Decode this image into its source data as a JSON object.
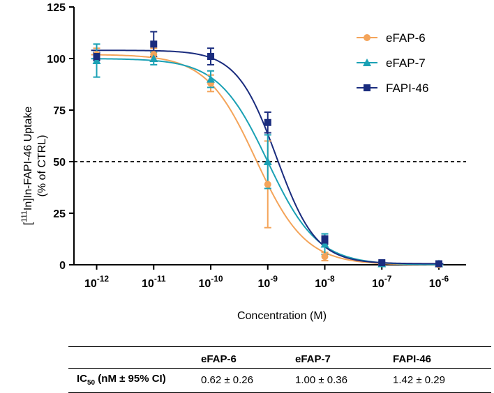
{
  "chart_data": {
    "type": "line",
    "xlabel": "Concentration (M)",
    "ylabel_line1": "[111In]In-FAPI-46 Uptake",
    "ylabel_line1_sup": "111",
    "ylabel_line1_pre": "[",
    "ylabel_line1_post": "In]In-FAPI-46 Uptake",
    "ylabel_line2": "(% of  CTRL)",
    "x_scale": "log",
    "xlim": [
      4e-13,
      3e-06
    ],
    "ylim": [
      0,
      125
    ],
    "yticks": [
      0,
      25,
      50,
      75,
      100,
      125
    ],
    "xticks": [
      {
        "value": 1e-12,
        "base": "10",
        "exp": "-12"
      },
      {
        "value": 1e-11,
        "base": "10",
        "exp": "-11"
      },
      {
        "value": 1e-10,
        "base": "10",
        "exp": "-10"
      },
      {
        "value": 1e-09,
        "base": "10",
        "exp": "-9"
      },
      {
        "value": 1e-08,
        "base": "10",
        "exp": "-8"
      },
      {
        "value": 1e-07,
        "base": "10",
        "exp": "-7"
      },
      {
        "value": 1e-06,
        "base": "10",
        "exp": "-6"
      }
    ],
    "reference_line": {
      "y": 50,
      "style": "dashed"
    },
    "legend_position": "top-right",
    "grid": false,
    "series": [
      {
        "name": "eFAP-6",
        "color": "#F4A45A",
        "marker": "circle",
        "fit": {
          "top": 102,
          "bottom": 0,
          "ic50": 6.2e-10,
          "hill": 1.0
        },
        "points": [
          {
            "x": 1e-12,
            "y": 102,
            "err": 3
          },
          {
            "x": 1e-11,
            "y": 102,
            "err": 3
          },
          {
            "x": 1e-10,
            "y": 88,
            "err": 4
          },
          {
            "x": 1e-09,
            "y": 39,
            "err": 21
          },
          {
            "x": 1e-08,
            "y": 4,
            "err": 2
          },
          {
            "x": 1e-07,
            "y": 0.5,
            "err": 0.5
          },
          {
            "x": 1e-06,
            "y": 0,
            "err": 0.5
          }
        ]
      },
      {
        "name": "eFAP-7",
        "color": "#1BA1B5",
        "marker": "triangle",
        "fit": {
          "top": 100,
          "bottom": 0,
          "ic50": 1e-09,
          "hill": 1.0
        },
        "points": [
          {
            "x": 1e-12,
            "y": 99,
            "err": 8
          },
          {
            "x": 1e-11,
            "y": 100,
            "err": 3
          },
          {
            "x": 1e-10,
            "y": 90,
            "err": 4
          },
          {
            "x": 1e-09,
            "y": 50,
            "err": 13
          },
          {
            "x": 1e-08,
            "y": 10,
            "err": 5
          },
          {
            "x": 1e-07,
            "y": 0.5,
            "err": 0.5
          },
          {
            "x": 1e-06,
            "y": 0.5,
            "err": 0.5
          }
        ]
      },
      {
        "name": "FAPI-46",
        "color": "#1A2C7E",
        "marker": "square",
        "fit": {
          "top": 104,
          "bottom": 0.5,
          "ic50": 1.42e-09,
          "hill": 1.25
        },
        "points": [
          {
            "x": 1e-12,
            "y": 101,
            "err": 2
          },
          {
            "x": 1e-11,
            "y": 107,
            "err": 6
          },
          {
            "x": 1e-10,
            "y": 101,
            "err": 4
          },
          {
            "x": 1e-09,
            "y": 69,
            "err": 5
          },
          {
            "x": 1e-08,
            "y": 12,
            "err": 2
          },
          {
            "x": 1e-07,
            "y": 1,
            "err": 0.5
          },
          {
            "x": 1e-06,
            "y": 0.5,
            "err": 0.5
          }
        ]
      }
    ]
  },
  "table": {
    "headers": [
      "",
      "eFAP-6",
      "eFAP-7",
      "FAPI-46"
    ],
    "row_label": "IC",
    "row_label_sub": "50",
    "row_label_suffix": " (nM ± 95% CI)",
    "values": [
      "0.62 ± 0.26",
      "1.00 ± 0.36",
      "1.42 ± 0.29"
    ]
  }
}
